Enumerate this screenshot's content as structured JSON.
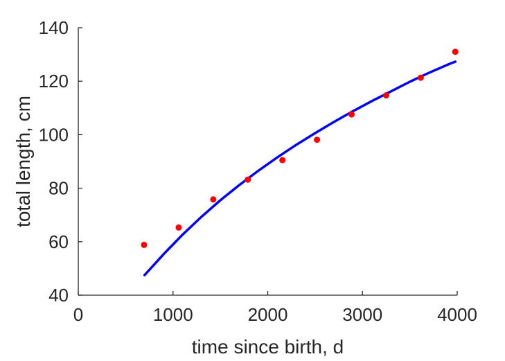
{
  "chart_data": {
    "type": "scatter",
    "title": "",
    "xlabel": "time since birth, d",
    "ylabel": "total length, cm",
    "xlim": [
      0,
      4000
    ],
    "ylim": [
      40,
      140
    ],
    "xticks": [
      0,
      1000,
      2000,
      3000,
      4000
    ],
    "yticks": [
      40,
      60,
      80,
      100,
      120,
      140
    ],
    "grid": false,
    "legend": "none",
    "series": [
      {
        "type": "scatter",
        "color": "#ff0000",
        "points": [
          {
            "x": 694,
            "y": 58.8
          },
          {
            "x": 1060,
            "y": 65.3
          },
          {
            "x": 1425,
            "y": 75.8
          },
          {
            "x": 1790,
            "y": 83.2
          },
          {
            "x": 2155,
            "y": 90.5
          },
          {
            "x": 2520,
            "y": 98.1
          },
          {
            "x": 2885,
            "y": 107.6
          },
          {
            "x": 3250,
            "y": 114.7
          },
          {
            "x": 3615,
            "y": 121.3
          },
          {
            "x": 3980,
            "y": 131.0
          }
        ]
      },
      {
        "type": "line",
        "color": "#0000ff",
        "points": [
          {
            "x": 700,
            "y": 47.5
          },
          {
            "x": 900,
            "y": 55.3
          },
          {
            "x": 1100,
            "y": 62.6
          },
          {
            "x": 1300,
            "y": 69.3
          },
          {
            "x": 1500,
            "y": 75.5
          },
          {
            "x": 1700,
            "y": 81.2
          },
          {
            "x": 1900,
            "y": 86.5
          },
          {
            "x": 2100,
            "y": 91.5
          },
          {
            "x": 2300,
            "y": 96.2
          },
          {
            "x": 2500,
            "y": 100.6
          },
          {
            "x": 2700,
            "y": 104.8
          },
          {
            "x": 2900,
            "y": 108.8
          },
          {
            "x": 3100,
            "y": 112.6
          },
          {
            "x": 3300,
            "y": 116.2
          },
          {
            "x": 3500,
            "y": 119.8
          },
          {
            "x": 3700,
            "y": 123.1
          },
          {
            "x": 3900,
            "y": 126.2
          },
          {
            "x": 3980,
            "y": 127.3
          }
        ]
      }
    ]
  }
}
